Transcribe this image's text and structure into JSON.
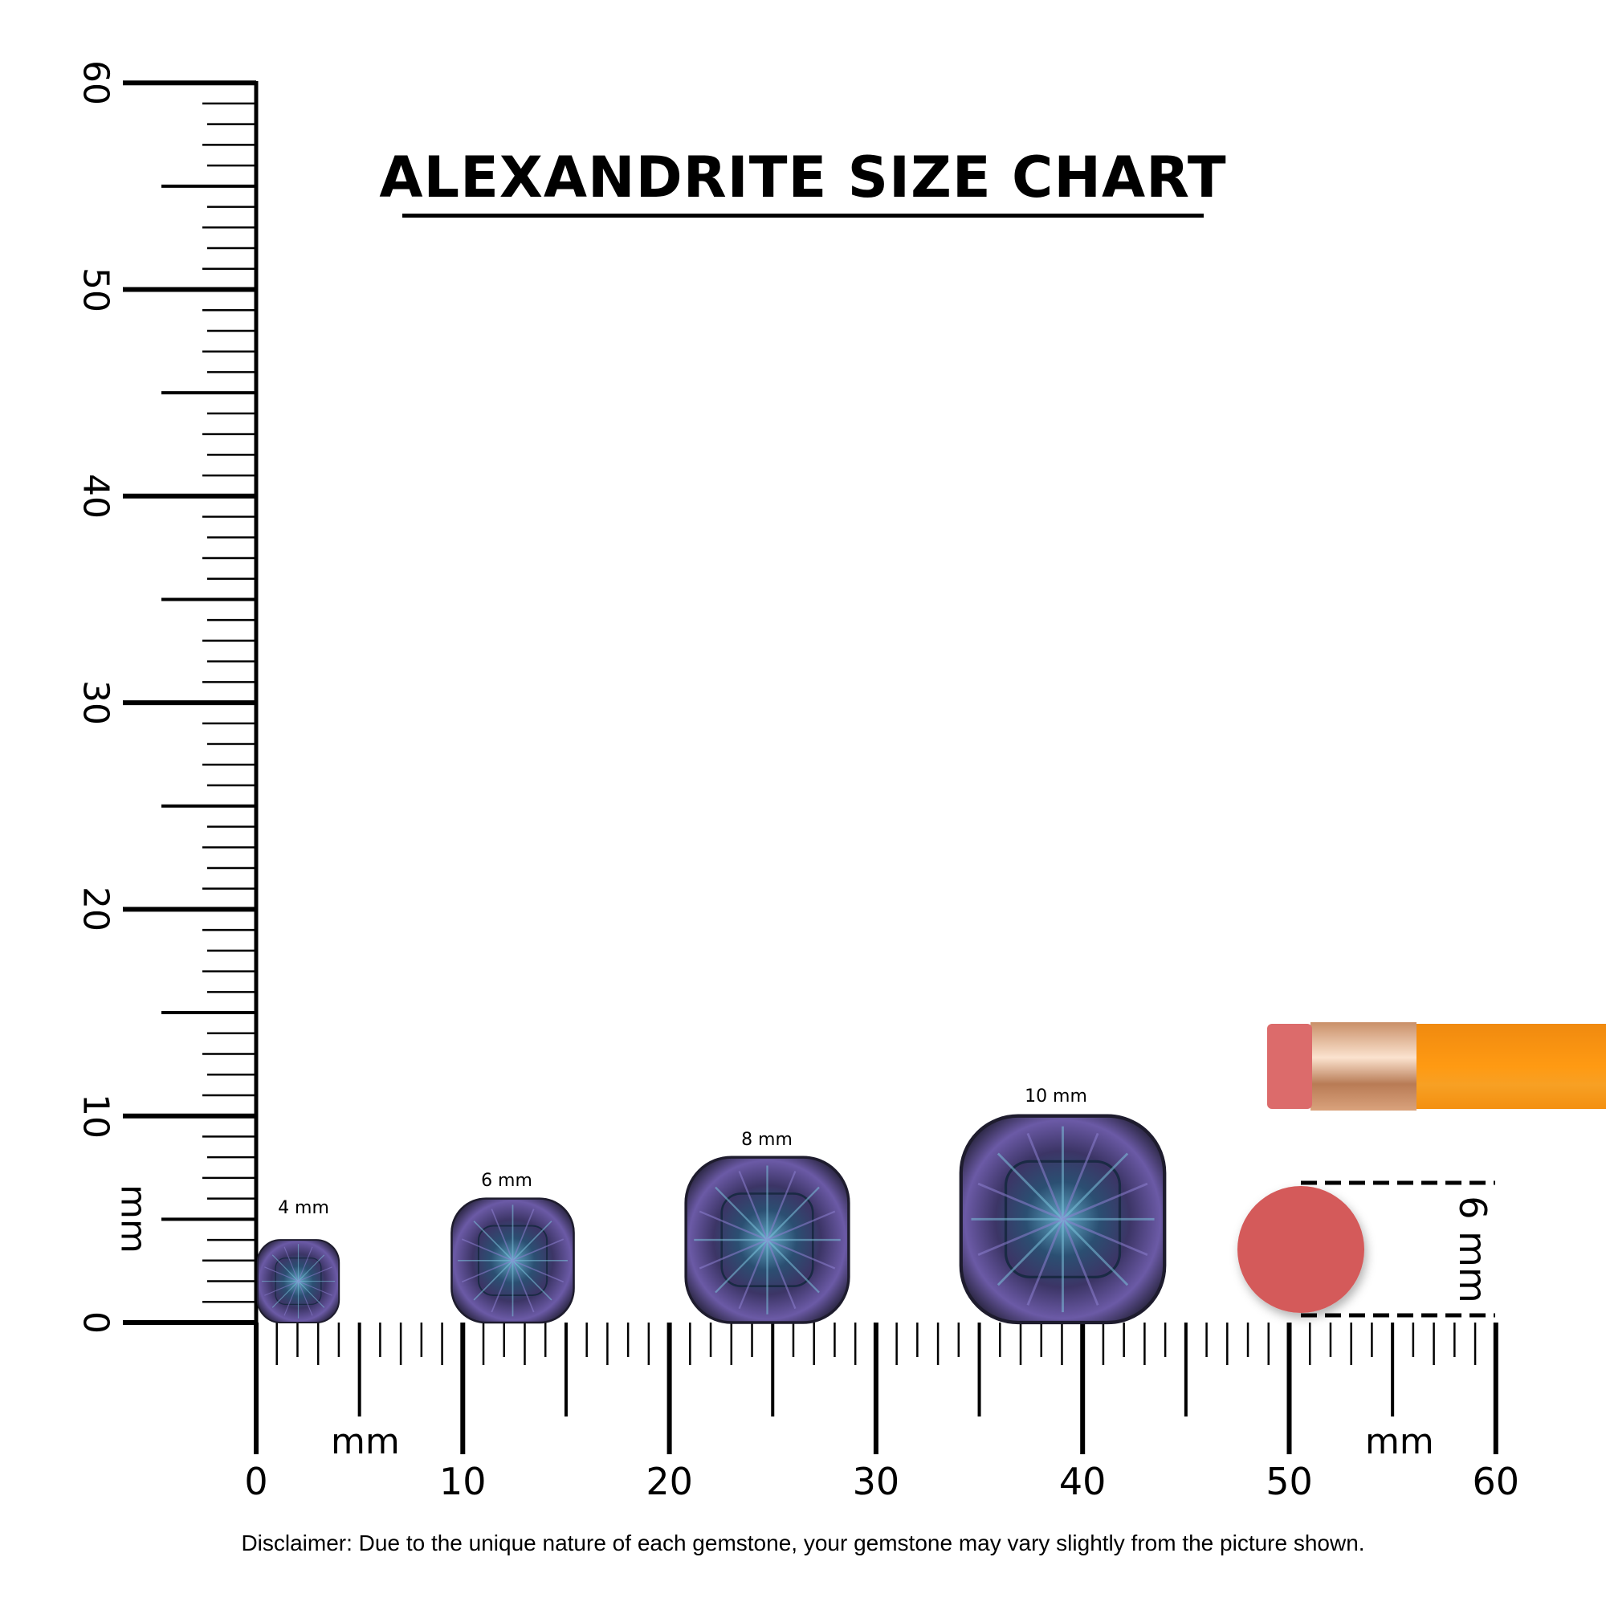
{
  "title": "ALEXANDRITE SIZE CHART",
  "ruler": {
    "unit_label": "mm",
    "x_ticks": [
      "0",
      "10",
      "20",
      "30",
      "40",
      "50",
      "60"
    ],
    "y_ticks": [
      "0",
      "10",
      "20",
      "30",
      "40",
      "50",
      "60"
    ],
    "range_mm": [
      0,
      60
    ]
  },
  "gems": [
    {
      "label": "4 mm",
      "size_mm": 4
    },
    {
      "label": "6 mm",
      "size_mm": 6
    },
    {
      "label": "8 mm",
      "size_mm": 8
    },
    {
      "label": "10 mm",
      "size_mm": 10
    }
  ],
  "reference": {
    "object": "pencil eraser",
    "label": "6 mm",
    "size_mm": 6
  },
  "disclaimer": "Disclaimer: Due to the unique nature of each gemstone, your gemstone may vary slightly from the picture shown.",
  "colors": {
    "eraser": "#d45a5a",
    "pencil": "#f7920f",
    "ferrule": "#d9a27c",
    "gem_dark": "#2c2a45",
    "gem_teal": "#3d7c9a",
    "gem_violet": "#7a63b8"
  }
}
